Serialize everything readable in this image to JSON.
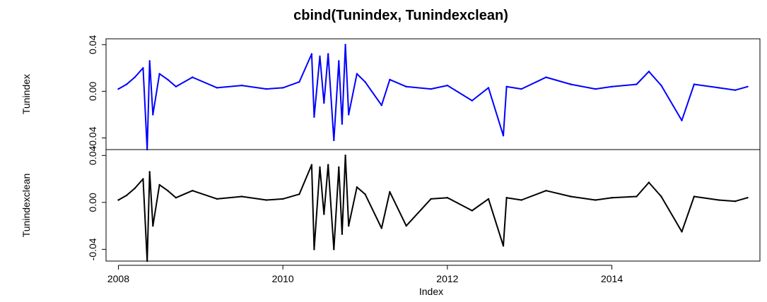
{
  "chart_data": {
    "type": "line",
    "title": "cbind(Tunindex, Tunindexclean)",
    "xlabel": "Index",
    "xlim": [
      2007.85,
      2015.8
    ],
    "x_ticks": [
      2008,
      2010,
      2012,
      2014
    ],
    "x_tick_labels": [
      "2008",
      "2010",
      "2012",
      "2014"
    ],
    "grid": false,
    "panels": [
      {
        "name": "Tunindex",
        "color": "#0000FF",
        "ylabel": "Tunindex",
        "ylim": [
          -0.05,
          0.045
        ],
        "y_ticks": [
          -0.04,
          0.0,
          0.04
        ],
        "y_tick_labels": [
          "-0.04",
          "0.00",
          "0.04"
        ],
        "x": [
          2008.0,
          2008.1,
          2008.2,
          2008.3,
          2008.35,
          2008.38,
          2008.42,
          2008.5,
          2008.6,
          2008.7,
          2008.9,
          2009.2,
          2009.5,
          2009.8,
          2010.0,
          2010.2,
          2010.35,
          2010.38,
          2010.45,
          2010.5,
          2010.55,
          2010.62,
          2010.68,
          2010.72,
          2010.76,
          2010.8,
          2010.9,
          2011.0,
          2011.2,
          2011.3,
          2011.5,
          2011.8,
          2012.0,
          2012.3,
          2012.5,
          2012.68,
          2012.72,
          2012.9,
          2013.2,
          2013.5,
          2013.8,
          2014.0,
          2014.3,
          2014.45,
          2014.6,
          2014.85,
          2015.0,
          2015.3,
          2015.5,
          2015.65
        ],
        "values": [
          0.002,
          0.006,
          0.012,
          0.02,
          -0.05,
          0.026,
          -0.02,
          0.015,
          0.01,
          0.004,
          0.012,
          0.003,
          0.005,
          0.002,
          0.003,
          0.008,
          0.032,
          -0.022,
          0.03,
          -0.01,
          0.032,
          -0.042,
          0.026,
          -0.028,
          0.04,
          -0.02,
          0.015,
          0.008,
          -0.012,
          0.01,
          0.004,
          0.002,
          0.005,
          -0.008,
          0.003,
          -0.038,
          0.004,
          0.002,
          0.012,
          0.006,
          0.002,
          0.004,
          0.006,
          0.017,
          0.005,
          -0.025,
          0.006,
          0.003,
          0.001,
          0.004
        ]
      },
      {
        "name": "Tunindexclean",
        "color": "#000000",
        "ylabel": "Tunindexclean",
        "ylim": [
          -0.05,
          0.045
        ],
        "y_ticks": [
          -0.04,
          0.0,
          0.04
        ],
        "y_tick_labels": [
          "-0.04",
          "0.00",
          "0.04"
        ],
        "x": [
          2008.0,
          2008.1,
          2008.2,
          2008.3,
          2008.35,
          2008.38,
          2008.42,
          2008.5,
          2008.6,
          2008.7,
          2008.9,
          2009.2,
          2009.5,
          2009.8,
          2010.0,
          2010.2,
          2010.35,
          2010.38,
          2010.45,
          2010.5,
          2010.55,
          2010.62,
          2010.68,
          2010.72,
          2010.76,
          2010.8,
          2010.9,
          2011.0,
          2011.2,
          2011.3,
          2011.5,
          2011.8,
          2012.0,
          2012.3,
          2012.5,
          2012.68,
          2012.72,
          2012.9,
          2013.2,
          2013.5,
          2013.8,
          2014.0,
          2014.3,
          2014.45,
          2014.6,
          2014.85,
          2015.0,
          2015.3,
          2015.5,
          2015.65
        ],
        "values": [
          0.002,
          0.006,
          0.012,
          0.02,
          -0.05,
          0.026,
          -0.02,
          0.015,
          0.01,
          0.004,
          0.01,
          0.003,
          0.005,
          0.002,
          0.003,
          0.007,
          0.032,
          -0.04,
          0.03,
          -0.01,
          0.032,
          -0.04,
          0.03,
          -0.027,
          0.04,
          -0.02,
          0.013,
          0.007,
          -0.022,
          0.009,
          -0.02,
          0.003,
          0.004,
          -0.007,
          0.003,
          -0.037,
          0.004,
          0.002,
          0.01,
          0.005,
          0.002,
          0.004,
          0.005,
          0.017,
          0.005,
          -0.025,
          0.005,
          0.002,
          0.001,
          0.004
        ]
      }
    ]
  }
}
